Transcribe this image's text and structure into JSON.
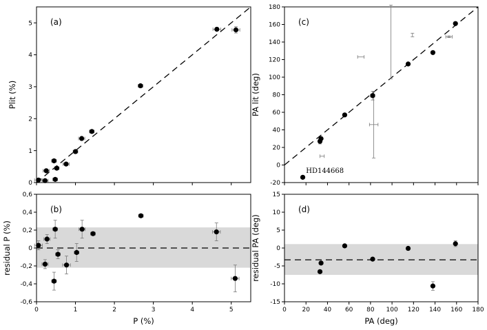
{
  "chart_data": [
    {
      "id": "a",
      "type": "scatter",
      "panel_label": "(a)",
      "xlabel": "",
      "ylabel": "Plit (%)",
      "xlim": [
        0,
        5.5
      ],
      "ylim": [
        0,
        5.5
      ],
      "xticks": [
        0,
        1,
        2,
        3,
        4,
        5
      ],
      "xticklabels": [
        "",
        "",
        "",
        "",
        "",
        ""
      ],
      "yticks": [
        0,
        1,
        2,
        3,
        4,
        5
      ],
      "yticklabels": [
        "0",
        "1",
        "2",
        "3",
        "4",
        "5"
      ],
      "reference_line": {
        "style": "dashed",
        "from": [
          0,
          0
        ],
        "to": [
          5.5,
          5.5
        ]
      },
      "points": [
        {
          "x": 0.05,
          "y": 0.08,
          "xerr": 0.1,
          "yerr": 0
        },
        {
          "x": 0.22,
          "y": 0.06,
          "xerr": 0.08,
          "yerr": 0
        },
        {
          "x": 0.25,
          "y": 0.37,
          "xerr": 0.08,
          "yerr": 0
        },
        {
          "x": 0.45,
          "y": 0.68,
          "xerr": 0.06,
          "yerr": 0
        },
        {
          "x": 0.48,
          "y": 0.1,
          "xerr": 0.06,
          "yerr": 0
        },
        {
          "x": 0.52,
          "y": 0.45,
          "xerr": 0.06,
          "yerr": 0
        },
        {
          "x": 0.76,
          "y": 0.58,
          "xerr": 0.08,
          "yerr": 0
        },
        {
          "x": 1.0,
          "y": 0.97,
          "xerr": 0.06,
          "yerr": 0
        },
        {
          "x": 1.16,
          "y": 1.38,
          "xerr": 0.08,
          "yerr": 0
        },
        {
          "x": 1.42,
          "y": 1.6,
          "xerr": 0.06,
          "yerr": 0
        },
        {
          "x": 2.67,
          "y": 3.03,
          "xerr": 0.06,
          "yerr": 0
        },
        {
          "x": 4.63,
          "y": 4.8,
          "xerr": 0.1,
          "yerr": 0
        },
        {
          "x": 5.12,
          "y": 4.78,
          "xerr": 0.1,
          "yerr": 0.1
        }
      ]
    },
    {
      "id": "b",
      "type": "scatter",
      "panel_label": "(b)",
      "xlabel": "P (%)",
      "ylabel": "residual P (%)",
      "xlim": [
        0,
        5.5
      ],
      "ylim": [
        -0.6,
        0.6
      ],
      "xticks": [
        0,
        1,
        2,
        3,
        4,
        5
      ],
      "xticklabels": [
        "0",
        "1",
        "2",
        "3",
        "4",
        "5"
      ],
      "yticks": [
        -0.6,
        -0.4,
        -0.2,
        0,
        0.2,
        0.4,
        0.6
      ],
      "yticklabels": [
        "-0,6",
        "-0,4",
        "-0,2",
        "0",
        "0,2",
        "0,4",
        "0,6"
      ],
      "band": [
        -0.22,
        0.23
      ],
      "reference_line": {
        "style": "dashed",
        "y": 0
      },
      "points": [
        {
          "x": 0.05,
          "y": 0.03,
          "xerr": 0.1,
          "yerr": 0.05
        },
        {
          "x": 0.22,
          "y": -0.18,
          "xerr": 0.08,
          "yerr": 0.05
        },
        {
          "x": 0.27,
          "y": 0.1,
          "xerr": 0.08,
          "yerr": 0.05
        },
        {
          "x": 0.45,
          "y": -0.37,
          "xerr": 0.06,
          "yerr": 0.1
        },
        {
          "x": 0.48,
          "y": 0.21,
          "xerr": 0.06,
          "yerr": 0.1
        },
        {
          "x": 0.55,
          "y": -0.07,
          "xerr": 0.06,
          "yerr": 0.05
        },
        {
          "x": 0.77,
          "y": -0.19,
          "xerr": 0.1,
          "yerr": 0.1
        },
        {
          "x": 1.03,
          "y": -0.05,
          "xerr": 0.06,
          "yerr": 0.1
        },
        {
          "x": 1.17,
          "y": 0.21,
          "xerr": 0.08,
          "yerr": 0.1
        },
        {
          "x": 1.45,
          "y": 0.16,
          "xerr": 0.06,
          "yerr": 0.02
        },
        {
          "x": 2.68,
          "y": 0.36,
          "xerr": 0.06,
          "yerr": 0.01
        },
        {
          "x": 4.62,
          "y": 0.18,
          "xerr": 0.1,
          "yerr": 0.1
        },
        {
          "x": 5.1,
          "y": -0.34,
          "xerr": 0.1,
          "yerr": 0.15
        }
      ]
    },
    {
      "id": "c",
      "type": "scatter",
      "panel_label": "(c)",
      "xlabel": "",
      "ylabel": "PA lit (deg)",
      "xlim": [
        0,
        180
      ],
      "ylim": [
        -20,
        180
      ],
      "xticks": [
        0,
        20,
        40,
        60,
        80,
        100,
        120,
        140,
        160,
        180
      ],
      "xticklabels": [
        "",
        "",
        "",
        "",
        "",
        "",
        "",
        "",
        "",
        ""
      ],
      "yticks": [
        -20,
        0,
        20,
        40,
        60,
        80,
        100,
        120,
        140,
        160,
        180
      ],
      "yticklabels": [
        "-20",
        "0",
        "20",
        "40",
        "60",
        "80",
        "100",
        "120",
        "140",
        "160",
        "180"
      ],
      "reference_line": {
        "style": "dashed",
        "from": [
          0,
          0
        ],
        "to": [
          180,
          180
        ]
      },
      "annotation": {
        "text": "HD144668",
        "x": 20,
        "y": -9
      },
      "points": [
        {
          "x": 17,
          "y": -14,
          "xerr": 0,
          "yerr": 0
        },
        {
          "x": 33,
          "y": 27,
          "xerr": 1,
          "yerr": 3
        },
        {
          "x": 34,
          "y": 30,
          "xerr": 1,
          "yerr": 0
        },
        {
          "x": 56,
          "y": 57,
          "xerr": 1,
          "yerr": 0
        },
        {
          "x": 82,
          "y": 79,
          "xerr": 2,
          "yerr": 5
        },
        {
          "x": 115,
          "y": 115,
          "xerr": 1,
          "yerr": 0
        },
        {
          "x": 138,
          "y": 128,
          "xerr": 1,
          "yerr": 0
        },
        {
          "x": 159,
          "y": 161,
          "xerr": 1,
          "yerr": 1
        }
      ],
      "error_bars_only": [
        {
          "x": 83,
          "y": 46,
          "xerr": 4,
          "yerr": 38
        },
        {
          "x": 99,
          "y": 140,
          "xerr": 0,
          "yerr": 42
        },
        {
          "x": 35,
          "y": 10,
          "xerr": 2,
          "yerr": 0
        },
        {
          "x": 71,
          "y": 123,
          "xerr": 3,
          "yerr": 0
        },
        {
          "x": 119,
          "y": 148,
          "xerr": 0,
          "yerr": 2
        },
        {
          "x": 153,
          "y": 146,
          "xerr": 3,
          "yerr": 1
        }
      ]
    },
    {
      "id": "d",
      "type": "scatter",
      "panel_label": "(d)",
      "xlabel": "PA (deg)",
      "ylabel": "residual PA (deg)",
      "xlim": [
        0,
        180
      ],
      "ylim": [
        -15,
        15
      ],
      "xticks": [
        0,
        20,
        40,
        60,
        80,
        100,
        120,
        140,
        160,
        180
      ],
      "xticklabels": [
        "0",
        "20",
        "40",
        "60",
        "80",
        "100",
        "120",
        "140",
        "160",
        "180"
      ],
      "yticks": [
        -15,
        -10,
        -5,
        0,
        5,
        10,
        15
      ],
      "yticklabels": [
        "-15",
        "-10",
        "-5",
        "0",
        "5",
        "10",
        "15"
      ],
      "band": [
        -7.5,
        1.1
      ],
      "reference_line": {
        "style": "dashed",
        "y": -3.3
      },
      "points": [
        {
          "x": 33,
          "y": -6.6,
          "xerr": 0,
          "yerr": 0.3
        },
        {
          "x": 34,
          "y": -4.2,
          "xerr": 0,
          "yerr": 0.3
        },
        {
          "x": 56,
          "y": 0.6,
          "xerr": 0,
          "yerr": 0.5
        },
        {
          "x": 82,
          "y": -3.1,
          "xerr": 0,
          "yerr": 0.2
        },
        {
          "x": 115,
          "y": -0.1,
          "xerr": 0,
          "yerr": 0.2
        },
        {
          "x": 138,
          "y": -10.6,
          "xerr": 0,
          "yerr": 1.2
        },
        {
          "x": 159,
          "y": 1.2,
          "xerr": 0,
          "yerr": 0.8
        }
      ]
    }
  ]
}
